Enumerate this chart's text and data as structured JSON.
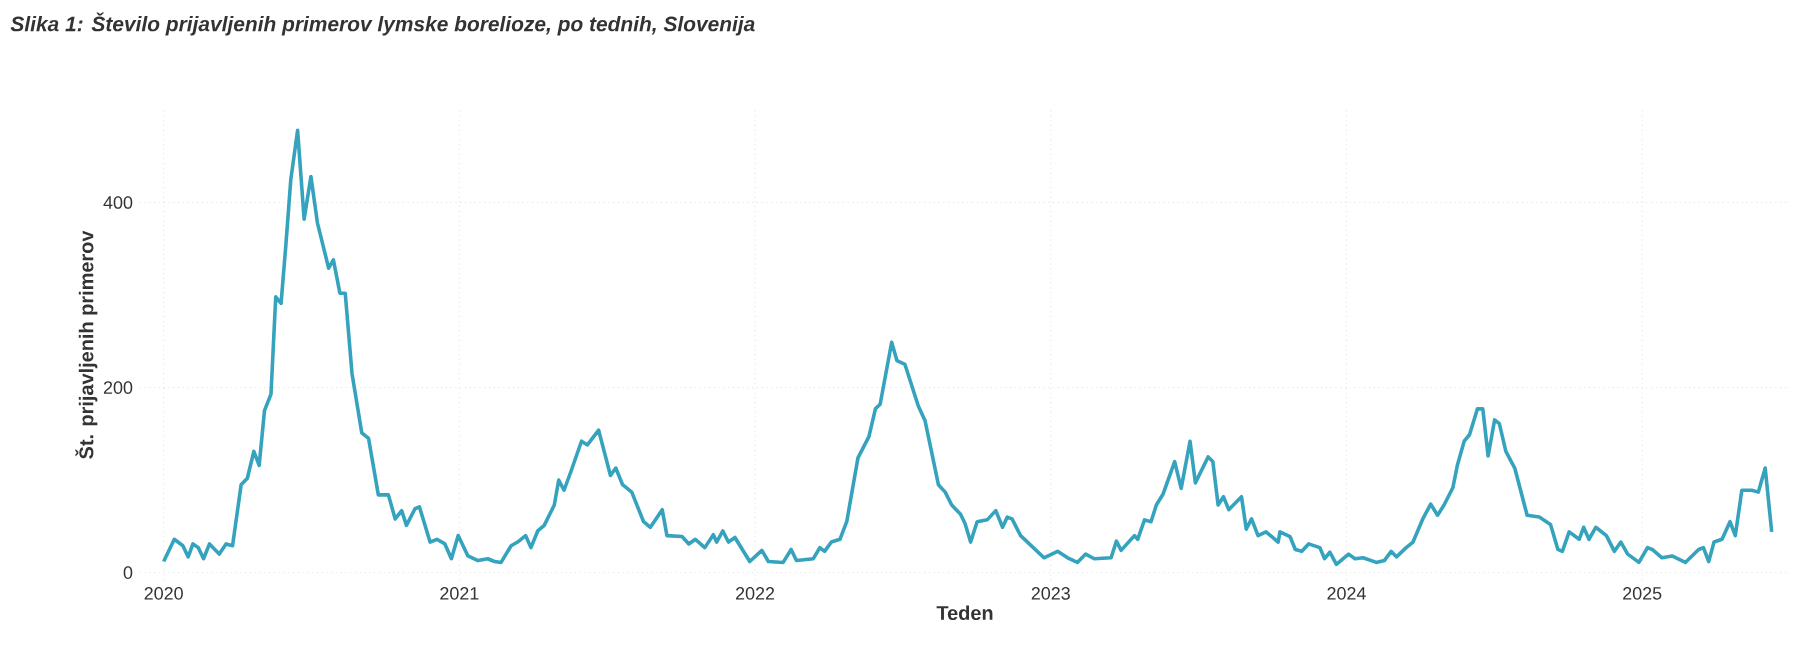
{
  "chart_data": {
    "type": "line",
    "title": "Slika 1: Število prijavljenih primerov lymske borelioze, po tednih, Slovenija",
    "xlabel": "Teden",
    "ylabel": "Št. prijavljenih primerov",
    "xlim": [
      2019.92,
      2025.5
    ],
    "ylim": [
      -8,
      500
    ],
    "xticks": [
      2020,
      2021,
      2022,
      2023,
      2024,
      2025
    ],
    "yticks": [
      0,
      200,
      400
    ],
    "grid": true,
    "marker": "none",
    "line_style": "solid",
    "series": [
      {
        "color": "#35a3bd",
        "x": [
          2020.0,
          2020.036,
          2020.065,
          2020.083,
          2020.099,
          2020.117,
          2020.135,
          2020.155,
          2020.188,
          2020.211,
          2020.233,
          2020.262,
          2020.283,
          2020.305,
          2020.323,
          2020.341,
          2020.363,
          2020.379,
          2020.397,
          2020.413,
          2020.43,
          2020.453,
          2020.475,
          2020.498,
          2020.52,
          2020.558,
          2020.574,
          2020.596,
          2020.614,
          2020.637,
          2020.67,
          2020.693,
          2020.726,
          2020.76,
          2020.783,
          2020.805,
          2020.821,
          2020.85,
          2020.865,
          2020.901,
          2020.924,
          2020.951,
          2020.973,
          2020.996,
          2021.029,
          2021.063,
          2021.096,
          2021.119,
          2021.141,
          2021.175,
          2021.197,
          2021.224,
          2021.242,
          2021.265,
          2021.287,
          2021.321,
          2021.336,
          2021.354,
          2021.377,
          2021.413,
          2021.433,
          2021.471,
          2021.511,
          2021.529,
          2021.552,
          2021.583,
          2021.623,
          2021.646,
          2021.686,
          2021.702,
          2021.753,
          2021.776,
          2021.798,
          2021.83,
          2021.859,
          2021.87,
          2021.891,
          2021.91,
          2021.932,
          2021.982,
          2022.023,
          2022.045,
          2022.095,
          2022.122,
          2022.14,
          2022.197,
          2022.219,
          2022.235,
          2022.258,
          2022.287,
          2022.31,
          2022.348,
          2022.385,
          2022.407,
          2022.423,
          2022.462,
          2022.48,
          2022.507,
          2022.552,
          2022.575,
          2022.62,
          2022.643,
          2022.665,
          2022.695,
          2022.71,
          2022.729,
          2022.751,
          2022.785,
          2022.814,
          2022.837,
          2022.853,
          2022.869,
          2022.898,
          2022.977,
          2023.023,
          2023.057,
          2023.09,
          2023.118,
          2023.147,
          2023.204,
          2023.222,
          2023.238,
          2023.283,
          2023.294,
          2023.317,
          2023.339,
          2023.357,
          2023.38,
          2023.419,
          2023.441,
          2023.471,
          2023.489,
          2023.532,
          2023.548,
          2023.566,
          2023.584,
          2023.602,
          2023.645,
          2023.661,
          2023.679,
          2023.701,
          2023.728,
          2023.769,
          2023.775,
          2023.809,
          2023.827,
          2023.849,
          2023.872,
          2023.91,
          2023.926,
          2023.944,
          2023.966,
          2024.007,
          2024.029,
          2024.056,
          2024.101,
          2024.128,
          2024.151,
          2024.169,
          2024.202,
          2024.225,
          2024.258,
          2024.285,
          2024.308,
          2024.33,
          2024.36,
          2024.375,
          2024.398,
          2024.416,
          2024.443,
          2024.461,
          2024.479,
          2024.501,
          2024.517,
          2024.539,
          2024.569,
          2024.611,
          2024.652,
          2024.69,
          2024.715,
          2024.73,
          2024.753,
          2024.787,
          2024.802,
          2024.82,
          2024.843,
          2024.879,
          2024.906,
          2024.928,
          2024.951,
          2024.989,
          2025.018,
          2025.034,
          2025.067,
          2025.101,
          2025.146,
          2025.191,
          2025.207,
          2025.225,
          2025.243,
          2025.27,
          2025.297,
          2025.315,
          2025.337,
          2025.371,
          2025.393,
          2025.416,
          2025.438
        ],
        "values": [
          12,
          36,
          29,
          17,
          31,
          27,
          15,
          31,
          20,
          31,
          29,
          95,
          102,
          131,
          116,
          175,
          193,
          298,
          291,
          353,
          425,
          478,
          382,
          428,
          378,
          329,
          338,
          302,
          302,
          215,
          151,
          145,
          84,
          84,
          58,
          67,
          51,
          69,
          71,
          33,
          36,
          31,
          15,
          40,
          18,
          13,
          15,
          12,
          11,
          29,
          33,
          40,
          27,
          45,
          51,
          73,
          100,
          89,
          109,
          142,
          138,
          154,
          105,
          113,
          95,
          87,
          55,
          49,
          68,
          40,
          39,
          31,
          36,
          27,
          41,
          33,
          45,
          33,
          38,
          12,
          24,
          12,
          11,
          25,
          13,
          15,
          27,
          23,
          33,
          36,
          55,
          124,
          147,
          177,
          182,
          249,
          229,
          225,
          180,
          164,
          95,
          87,
          73,
          63,
          53,
          33,
          55,
          57,
          67,
          49,
          60,
          58,
          40,
          16,
          23,
          16,
          11,
          20,
          15,
          16,
          34,
          24,
          40,
          36,
          57,
          55,
          73,
          85,
          120,
          91,
          142,
          97,
          125,
          120,
          73,
          82,
          68,
          82,
          47,
          58,
          40,
          44,
          33,
          44,
          39,
          25,
          23,
          31,
          27,
          15,
          22,
          9,
          20,
          15,
          16,
          11,
          13,
          23,
          17,
          27,
          33,
          58,
          74,
          62,
          73,
          92,
          116,
          142,
          149,
          177,
          177,
          126,
          165,
          161,
          131,
          113,
          62,
          60,
          52,
          25,
          23,
          44,
          36,
          49,
          36,
          49,
          40,
          23,
          33,
          20,
          11,
          27,
          25,
          16,
          18,
          11,
          25,
          27,
          12,
          33,
          36,
          55,
          40,
          89,
          89,
          87,
          113,
          44
        ]
      }
    ]
  }
}
